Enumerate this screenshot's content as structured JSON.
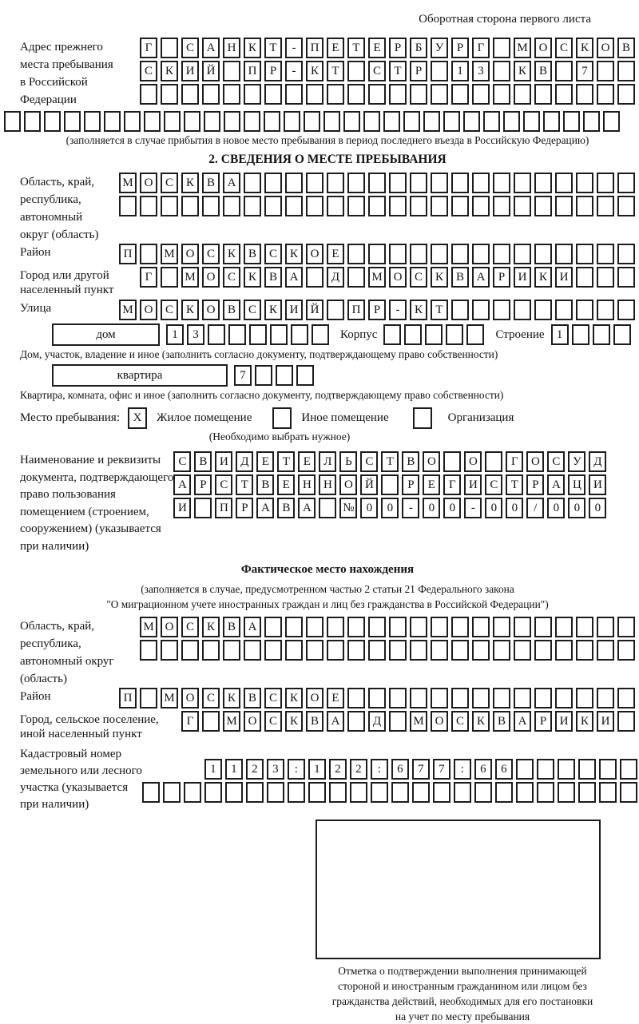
{
  "header": {
    "note": "Оборотная сторона первого листа"
  },
  "prev_address": {
    "label_lines": [
      "Адрес прежнего",
      "места пребывания",
      "в Российской",
      "Федерации"
    ],
    "rows": [
      {
        "chars": "Г САНКТ-ПЕТЕРБУРГ МОСКОВ",
        "len": 24
      },
      {
        "chars": "СКИЙ ПР-КТ СТР 13 КВ 7",
        "len": 24
      },
      {
        "chars": "",
        "len": 24
      }
    ],
    "full_row": {
      "chars": "",
      "len": 31
    },
    "note": "(заполняется в случае прибытия в новое место пребывания в период последнего въезда в Российскую Федерацию)"
  },
  "section2": {
    "title": "2. СВЕДЕНИЯ О МЕСТЕ ПРЕБЫВАНИЯ",
    "region": {
      "label_lines": [
        "Область, край,",
        "республика,",
        "автономный",
        "округ (область)"
      ],
      "rows": [
        {
          "chars": "МОСКВА",
          "len": 25
        },
        {
          "chars": "",
          "len": 25
        }
      ]
    },
    "district": {
      "label": "Район",
      "row": {
        "chars": "П МОСКВСКОЕ",
        "len": 25
      }
    },
    "city": {
      "label_lines": [
        "Город или другой",
        "населенный пункт"
      ],
      "row": {
        "chars": "Г МОСКВА Д МОСКВАРИКИ",
        "len": 24
      }
    },
    "street": {
      "label": "Улица",
      "row": {
        "chars": "МОСКОВСКИЙ ПР-КТ",
        "len": 25
      }
    },
    "house": {
      "box_label": "дом",
      "house_cells": {
        "chars": "13",
        "len": 8
      },
      "korpus_label": "Корпус",
      "korpus_cells": {
        "chars": "",
        "len": 5
      },
      "stroenie_label": "Строение",
      "stroenie_cells": {
        "chars": "1",
        "len": 4
      },
      "note": "Дом, участок, владение и иное (заполнить согласно документу, подтверждающему право собственности)"
    },
    "apartment": {
      "box_label": "квартира",
      "cells": {
        "chars": "7",
        "len": 4
      },
      "note": "Квартира, комната, офис и иное (заполнить согласно документу, подтверждающему право собственности)"
    },
    "stay": {
      "label": "Место пребывания:",
      "options": [
        {
          "label": "Жилое помещение",
          "mark": "X"
        },
        {
          "label": "Иное помещение",
          "mark": ""
        },
        {
          "label": "Организация",
          "mark": ""
        }
      ],
      "note": "(Необходимо выбрать нужное)"
    },
    "document": {
      "label_lines": [
        "Наименование и реквизиты",
        "документа, подтверждающего",
        "право пользования",
        "помещением (строением,",
        "сооружением) (указывается",
        "при наличии)"
      ],
      "rows": [
        {
          "chars": "СВИДЕТЕЛЬСТВО О ГОСУД",
          "len": 21
        },
        {
          "chars": "АРСТВЕННОЙ РЕГИСТРАЦИ",
          "len": 21
        },
        {
          "chars": "И ПРАВА №00-00-00/000",
          "len": 21
        }
      ]
    }
  },
  "actual": {
    "title": "Фактическое место нахождения",
    "note_lines": [
      "(заполняется в случае, предусмотренном частью 2 статьи 21 Федерального закона",
      "\"О миграционном учете иностранных граждан и лиц без гражданства в Российской Федерации\")"
    ],
    "region": {
      "label_lines": [
        "Область, край,",
        "республика,",
        "автономный округ",
        "(область)"
      ],
      "rows": [
        {
          "chars": "МОСКВА",
          "len": 24
        },
        {
          "chars": "",
          "len": 24
        }
      ]
    },
    "district": {
      "label": "Район",
      "row": {
        "chars": "П МОСКВСКОЕ",
        "len": 25
      }
    },
    "city": {
      "label_lines": [
        "Город, сельское поселение,",
        "иной населенный пункт"
      ],
      "row": {
        "chars": "Г МОСКВА Д МОСКВАРИКИ",
        "len": 22
      }
    },
    "cadastral": {
      "label_lines": [
        "Кадастровый номер",
        "земельного или лесного",
        "участка (указывается",
        "при наличии)"
      ],
      "rows": [
        {
          "chars": "1123:122:677:66",
          "len": 22
        },
        {
          "chars": "",
          "len": 25
        }
      ]
    }
  },
  "confirmation": {
    "caption_lines": [
      "Отметка о подтверждении выполнения принимающей",
      "стороной и иностранным гражданином или лицом без",
      "гражданства действий, необходимых для его постановки",
      "на учет по месту пребывания"
    ]
  }
}
